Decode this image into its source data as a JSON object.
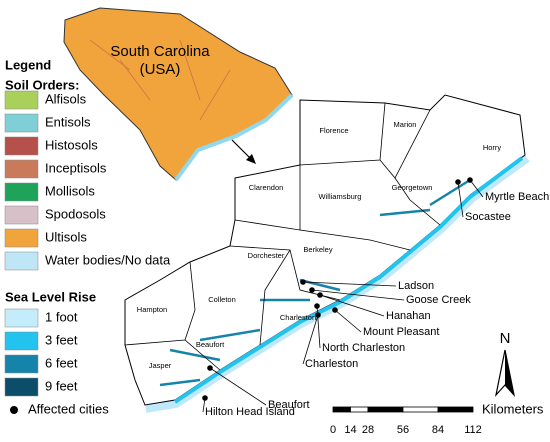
{
  "inset": {
    "label_lines": [
      "South Carolina",
      "(USA)"
    ]
  },
  "legend": {
    "title": "Legend",
    "soil_title": "Soil Orders:",
    "soil_orders": [
      {
        "name": "Alfisols",
        "color": "#a8d05a"
      },
      {
        "name": "Entisols",
        "color": "#7fd0d6"
      },
      {
        "name": "Histosols",
        "color": "#b5504a"
      },
      {
        "name": "Inceptisols",
        "color": "#c97a5a"
      },
      {
        "name": "Mollisols",
        "color": "#1fa35a"
      },
      {
        "name": "Spodosols",
        "color": "#d8c0c8"
      },
      {
        "name": "Ultisols",
        "color": "#f2a43c"
      },
      {
        "name": "Water bodies/No data",
        "color": "#bfe6f7"
      }
    ],
    "slr_title": "Sea Level Rise",
    "slr": [
      {
        "name": "1 foot",
        "color": "#c4ecfb"
      },
      {
        "name": "3 feet",
        "color": "#22c3ef"
      },
      {
        "name": "6 feet",
        "color": "#1683ab"
      },
      {
        "name": "9 feet",
        "color": "#0c4d6a"
      }
    ],
    "cities_label": "Affected cities"
  },
  "counties": [
    "Florence",
    "Marion",
    "Horry",
    "Clarendon",
    "Williamsburg",
    "Georgetown",
    "Berkeley",
    "Dorchester",
    "Hampton",
    "Colleton",
    "Charleston",
    "Jasper",
    "Beaufort"
  ],
  "cities": [
    "Myrtle Beach",
    "Socastee",
    "Ladson",
    "Goose Creek",
    "Hanahan",
    "Mount Pleasant",
    "North Charleston",
    "Charleston",
    "Beaufort",
    "Hilton Head Island"
  ],
  "scale_bar": {
    "unit": "Kilometers",
    "ticks": [
      0,
      14,
      28,
      56,
      84,
      112
    ]
  },
  "north": "N"
}
